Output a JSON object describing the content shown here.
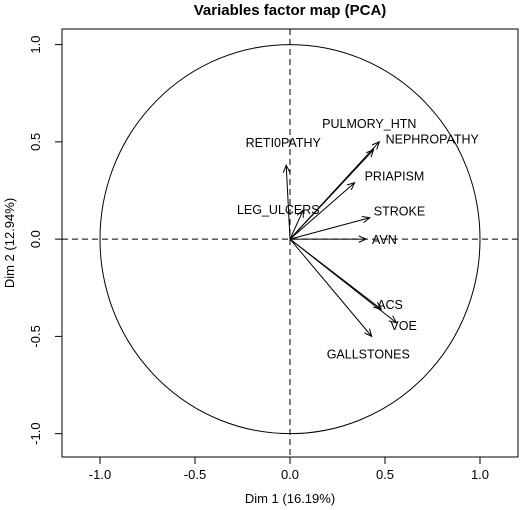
{
  "chart_data": {
    "type": "scatter",
    "title": "Variables factor map (PCA)",
    "xlabel": "Dim 1 (16.19%)",
    "ylabel": "Dim 2 (12.94%)",
    "xlim": [
      -1.2,
      1.2
    ],
    "ylim": [
      -1.12,
      1.08
    ],
    "x_ticks": [
      -1.0,
      -0.5,
      0.0,
      0.5,
      1.0
    ],
    "x_tick_labels": [
      "-1.0",
      "-0.5",
      "0.0",
      "0.5",
      "1.0"
    ],
    "y_ticks": [
      -1.0,
      -0.5,
      0.0,
      0.5,
      1.0
    ],
    "y_tick_labels": [
      "-1.0",
      "-0.5",
      "0.0",
      "0.5",
      "1.0"
    ],
    "unit_circle": true,
    "dashed_reference_lines": true,
    "variables": [
      {
        "name": "PULMORY_HTN",
        "x": 0.47,
        "y": 0.5
      },
      {
        "name": "NEPHROPATHY",
        "x": 0.44,
        "y": 0.46
      },
      {
        "name": "RETI0PATHY",
        "x": -0.02,
        "y": 0.38
      },
      {
        "name": "PRIAPISM",
        "x": 0.34,
        "y": 0.29
      },
      {
        "name": "LEG_ULCERS",
        "x": 0.07,
        "y": 0.15
      },
      {
        "name": "STROKE",
        "x": 0.42,
        "y": 0.11
      },
      {
        "name": "AVN",
        "x": 0.4,
        "y": 0.0
      },
      {
        "name": "ACS",
        "x": 0.48,
        "y": -0.36
      },
      {
        "name": "VOE",
        "x": 0.56,
        "y": -0.43
      },
      {
        "name": "GALLSTONES",
        "x": 0.43,
        "y": -0.5
      }
    ]
  }
}
